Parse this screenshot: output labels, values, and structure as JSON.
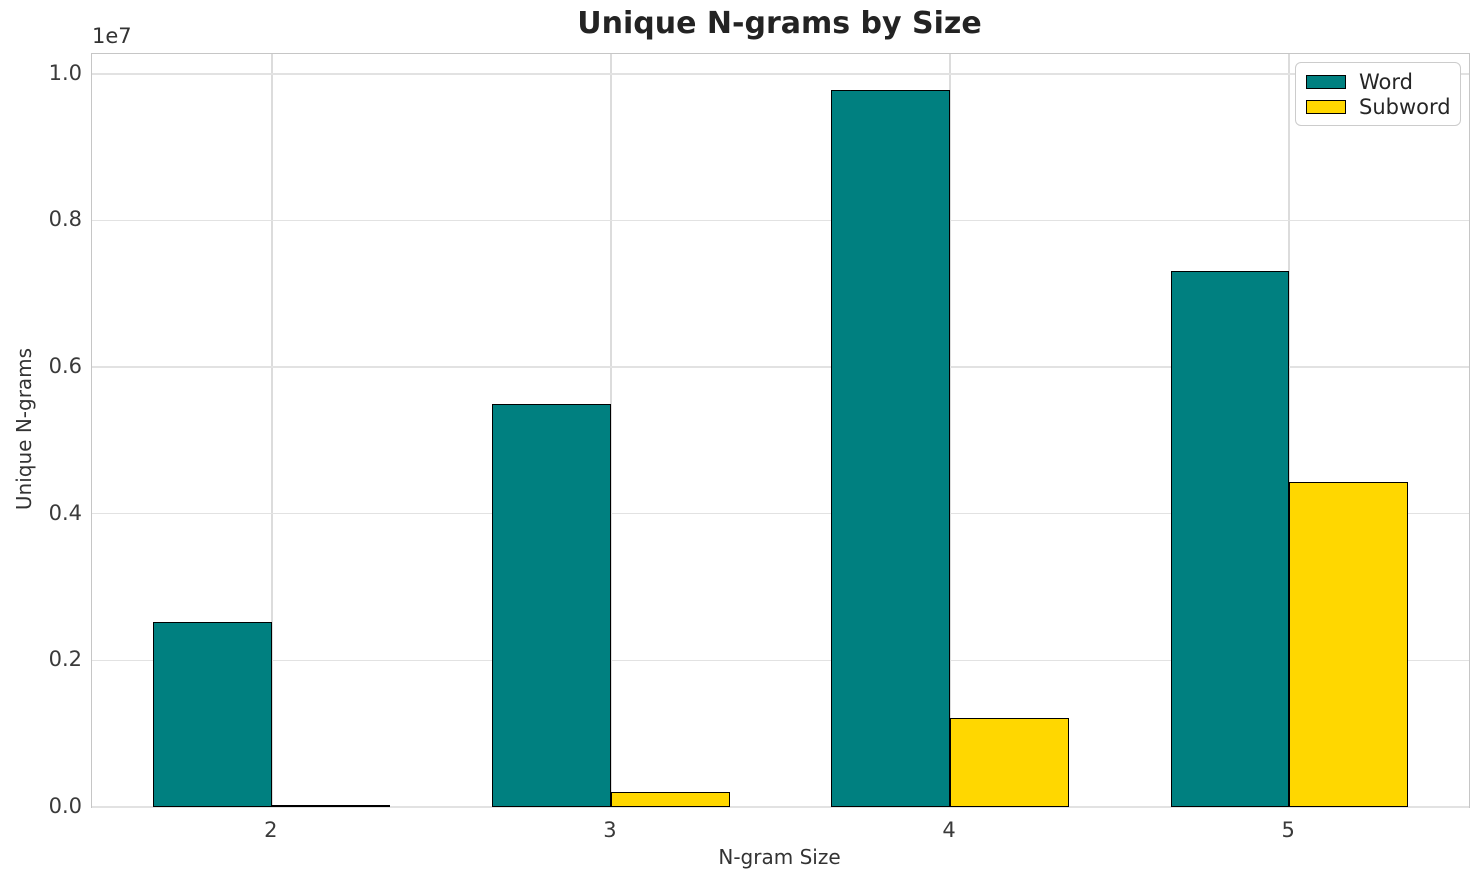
{
  "chart_data": {
    "type": "bar",
    "title": "Unique N-grams by Size",
    "xlabel": "N-gram Size",
    "ylabel": "Unique N-grams",
    "offset_text": "1e7",
    "categories": [
      "2",
      "3",
      "4",
      "5"
    ],
    "x_positions": [
      2,
      3,
      4,
      5
    ],
    "series": [
      {
        "name": "Word",
        "color": "#008080",
        "values": [
          2530000,
          5500000,
          9780000,
          7310000
        ]
      },
      {
        "name": "Subword",
        "color": "#FFD700",
        "values": [
          30000,
          200000,
          1220000,
          4430000
        ]
      }
    ],
    "bar_width": 0.35,
    "bar_edge_color": "#000000",
    "xlim": [
      1.47,
      5.53
    ],
    "ylim": [
      0,
      10270000
    ],
    "yticks": [
      0,
      2000000,
      4000000,
      6000000,
      8000000,
      10000000
    ],
    "ytick_labels": [
      "0.0",
      "0.2",
      "0.4",
      "0.6",
      "0.8",
      "1.0"
    ],
    "grid": true,
    "legend_position": "upper right"
  },
  "colors": {
    "word": "#008080",
    "subword": "#FFD700",
    "grid": "#dcdcdc",
    "spine": "#c6c6c6",
    "text": "#262626"
  }
}
